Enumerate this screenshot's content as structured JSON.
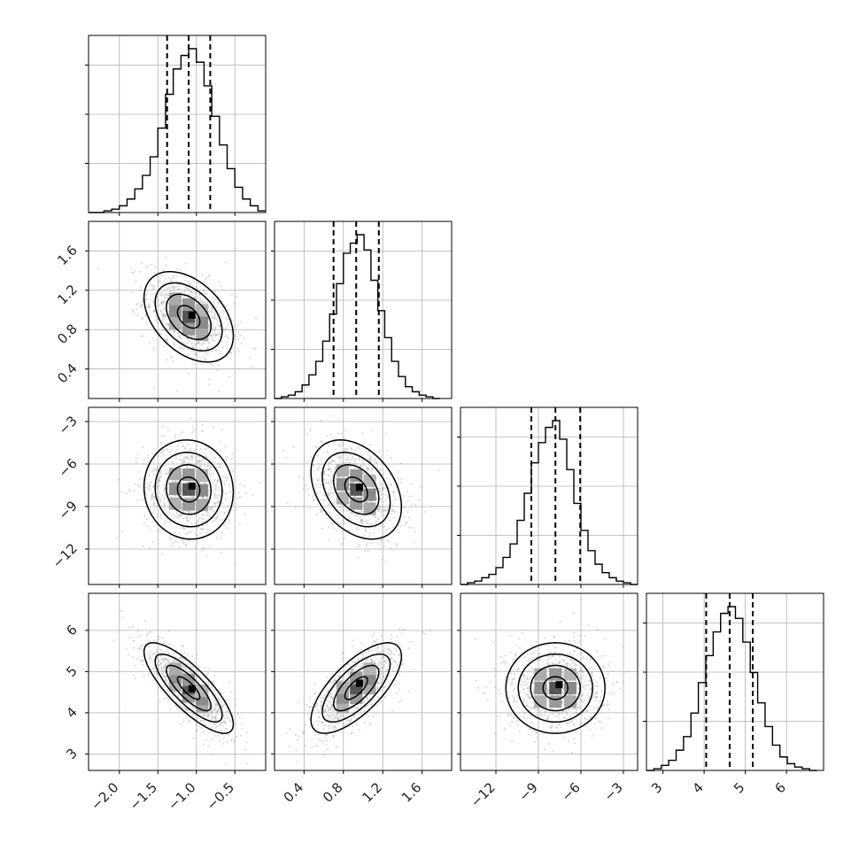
{
  "chart_data": {
    "type": "corner",
    "parameters": [
      {
        "id": "p0",
        "mean": -1.1,
        "sd": 0.29,
        "range": [
          -2.4,
          -0.1
        ],
        "ticks": [
          -2.0,
          -1.5,
          -1.0,
          -0.5
        ],
        "tick_labels": [
          "−2.0",
          "−1.5",
          "−1.0",
          "−0.5"
        ],
        "quantiles": [
          -1.38,
          -1.1,
          -0.82
        ]
      },
      {
        "id": "p1",
        "mean": 0.93,
        "sd": 0.23,
        "range": [
          0.1,
          1.9
        ],
        "ticks": [
          0.4,
          0.8,
          1.2,
          1.6
        ],
        "tick_labels": [
          "0.4",
          "0.8",
          "1.2",
          "1.6"
        ],
        "quantiles": [
          0.7,
          0.93,
          1.16
        ]
      },
      {
        "id": "p2",
        "mean": -7.8,
        "sd": 1.75,
        "range": [
          -14.5,
          -2.0
        ],
        "ticks": [
          -12,
          -9,
          -6,
          -3
        ],
        "tick_labels": [
          "−12",
          "−9",
          "−6",
          "−3"
        ],
        "quantiles": [
          -9.5,
          -7.8,
          -6.05
        ]
      },
      {
        "id": "p3",
        "mean": 4.6,
        "sd": 0.55,
        "range": [
          2.6,
          6.9
        ],
        "ticks": [
          3,
          4,
          5,
          6
        ],
        "tick_labels": [
          "3",
          "4",
          "5",
          "6"
        ],
        "quantiles": [
          4.05,
          4.62,
          5.18
        ]
      }
    ],
    "correlations": {
      "1-0": -0.42,
      "2-0": -0.05,
      "2-1": -0.35,
      "3-0": -0.8,
      "3-1": 0.7,
      "3-2": 0.0
    },
    "histograms": [
      {
        "bin_edges": [
          -2.4,
          -2.3,
          -2.2,
          -2.1,
          -2.0,
          -1.9,
          -1.8,
          -1.7,
          -1.6,
          -1.5,
          -1.4,
          -1.3,
          -1.2,
          -1.1,
          -1.0,
          -0.9,
          -0.8,
          -0.7,
          -0.6,
          -0.5,
          -0.4,
          -0.3,
          -0.2,
          -0.1
        ],
        "counts": [
          0,
          0,
          1,
          2,
          4,
          8,
          14,
          22,
          33,
          50,
          70,
          85,
          93,
          97,
          89,
          75,
          57,
          40,
          26,
          15,
          8,
          4,
          1
        ]
      },
      {
        "bin_edges": [
          0.1,
          0.17,
          0.24,
          0.31,
          0.38,
          0.45,
          0.52,
          0.59,
          0.66,
          0.73,
          0.8,
          0.87,
          0.94,
          1.01,
          1.08,
          1.15,
          1.22,
          1.29,
          1.36,
          1.43,
          1.5,
          1.57,
          1.64,
          1.71,
          1.78
        ],
        "counts": [
          0,
          1,
          2,
          4,
          8,
          14,
          22,
          34,
          50,
          68,
          86,
          92,
          97,
          88,
          70,
          52,
          36,
          22,
          13,
          7,
          4,
          2,
          1,
          0
        ]
      },
      {
        "bin_edges": [
          -14.5,
          -14.0,
          -13.5,
          -13.0,
          -12.5,
          -12.0,
          -11.5,
          -11.0,
          -10.5,
          -10.0,
          -9.5,
          -9.0,
          -8.5,
          -8.0,
          -7.5,
          -7.0,
          -6.5,
          -6.0,
          -5.5,
          -5.0,
          -4.5,
          -4.0,
          -3.5,
          -3.0,
          -2.5,
          -2.0
        ],
        "counts": [
          0,
          1,
          2,
          4,
          6,
          10,
          16,
          24,
          38,
          54,
          72,
          84,
          93,
          97,
          86,
          68,
          48,
          32,
          20,
          12,
          7,
          4,
          2,
          1,
          0
        ]
      },
      {
        "bin_edges": [
          2.6,
          2.78,
          2.96,
          3.14,
          3.32,
          3.5,
          3.68,
          3.86,
          4.04,
          4.22,
          4.4,
          4.58,
          4.76,
          4.94,
          5.12,
          5.3,
          5.48,
          5.66,
          5.84,
          6.02,
          6.2,
          6.38,
          6.56,
          6.74
        ],
        "counts": [
          0,
          1,
          3,
          6,
          12,
          20,
          34,
          52,
          68,
          82,
          93,
          97,
          90,
          76,
          58,
          40,
          26,
          15,
          8,
          4,
          2,
          1,
          0
        ]
      }
    ],
    "grid": true
  }
}
